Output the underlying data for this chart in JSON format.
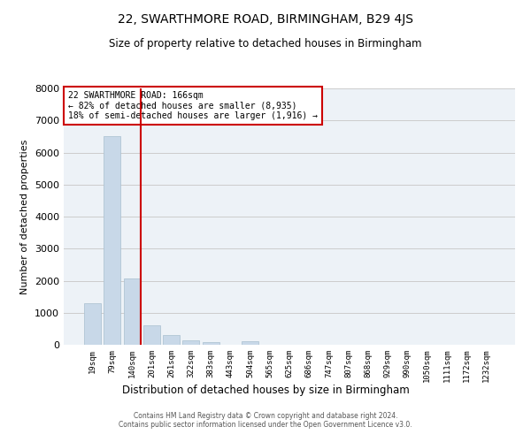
{
  "title": "22, SWARTHMORE ROAD, BIRMINGHAM, B29 4JS",
  "subtitle": "Size of property relative to detached houses in Birmingham",
  "xlabel": "Distribution of detached houses by size in Birmingham",
  "ylabel": "Number of detached properties",
  "bin_labels": [
    "19sqm",
    "79sqm",
    "140sqm",
    "201sqm",
    "261sqm",
    "322sqm",
    "383sqm",
    "443sqm",
    "504sqm",
    "565sqm",
    "625sqm",
    "686sqm",
    "747sqm",
    "807sqm",
    "868sqm",
    "929sqm",
    "990sqm",
    "1050sqm",
    "1111sqm",
    "1172sqm",
    "1232sqm"
  ],
  "bar_heights": [
    1300,
    6500,
    2080,
    620,
    300,
    130,
    70,
    0,
    100,
    0,
    0,
    0,
    0,
    0,
    0,
    0,
    0,
    0,
    0,
    0,
    0
  ],
  "bar_color": "#c8d8e8",
  "bar_edgecolor": "#a8bfcf",
  "vline_color": "#cc0000",
  "annotation_title": "22 SWARTHMORE ROAD: 166sqm",
  "annotation_line1": "← 82% of detached houses are smaller (8,935)",
  "annotation_line2": "18% of semi-detached houses are larger (1,916) →",
  "annotation_box_edgecolor": "#cc0000",
  "ylim": [
    0,
    8000
  ],
  "yticks": [
    0,
    1000,
    2000,
    3000,
    4000,
    5000,
    6000,
    7000,
    8000
  ],
  "grid_color": "#cccccc",
  "bg_color": "#edf2f7",
  "footer1": "Contains HM Land Registry data © Crown copyright and database right 2024.",
  "footer2": "Contains public sector information licensed under the Open Government Licence v3.0."
}
